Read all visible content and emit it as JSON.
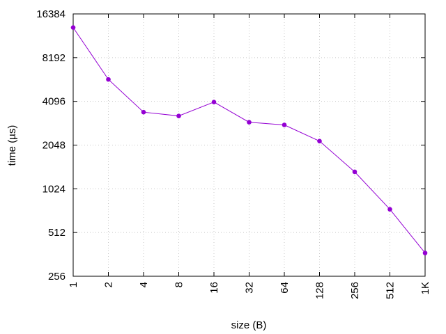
{
  "chart_data": {
    "type": "line",
    "title": "",
    "xlabel": "size (B)",
    "ylabel": "time (µs)",
    "x_scale": "log2",
    "y_scale": "log2",
    "x_ticks": [
      "1",
      "2",
      "4",
      "8",
      "16",
      "32",
      "64",
      "128",
      "256",
      "512",
      "1K"
    ],
    "y_ticks": [
      "256",
      "512",
      "1024",
      "2048",
      "4096",
      "8192",
      "16384"
    ],
    "ylim": [
      256,
      16384
    ],
    "grid": true,
    "legend": "none",
    "series": [
      {
        "color": "#9400d3",
        "x": [
          1,
          2,
          4,
          8,
          16,
          32,
          64,
          128,
          256,
          512,
          1024
        ],
        "y": [
          13200,
          5800,
          3450,
          3250,
          4050,
          2940,
          2820,
          2180,
          1340,
          740,
          370
        ]
      }
    ]
  }
}
